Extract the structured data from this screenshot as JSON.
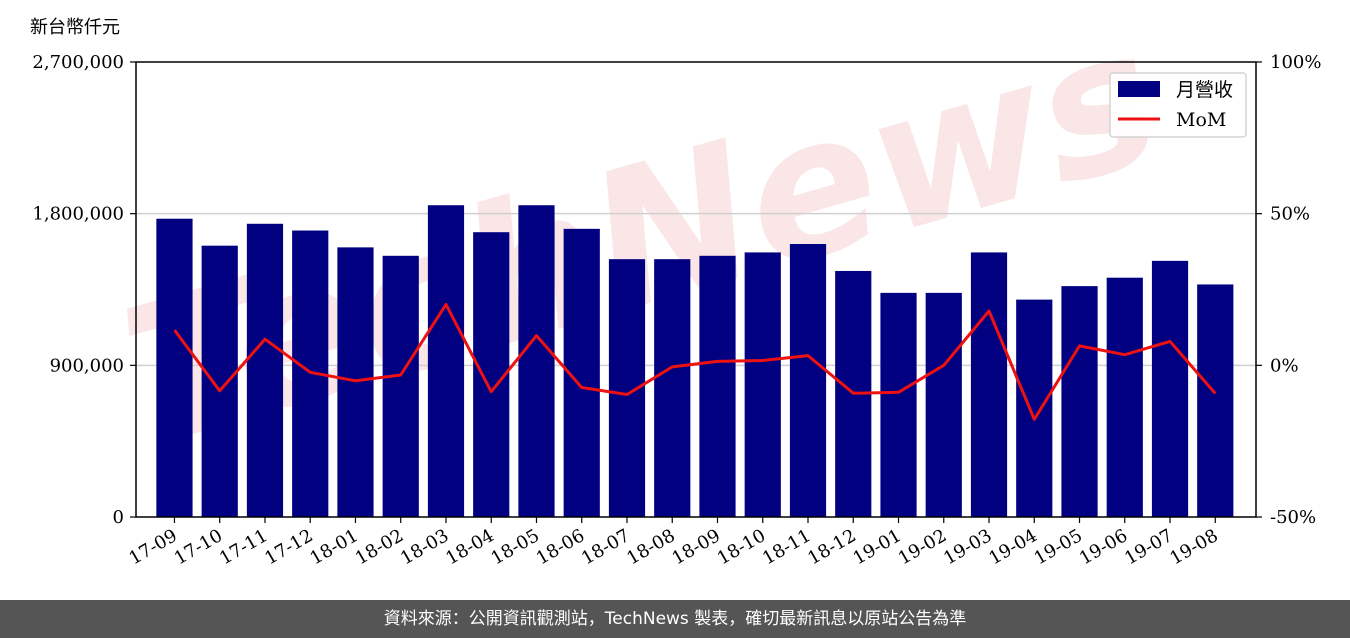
{
  "footer_text": "資料來源：公開資訊觀測站，TechNews 製表，確切最新訊息以原站公告為準",
  "watermark_text": "TechNews",
  "chart_data": {
    "type": "bar+line",
    "unit_label": "新台幣仟元",
    "categories": [
      "17-09",
      "17-10",
      "17-11",
      "17-12",
      "18-01",
      "18-02",
      "18-03",
      "18-04",
      "18-05",
      "18-06",
      "18-07",
      "18-08",
      "18-09",
      "18-10",
      "18-11",
      "18-12",
      "19-01",
      "19-02",
      "19-03",
      "19-04",
      "19-05",
      "19-06",
      "19-07",
      "19-08"
    ],
    "series": [
      {
        "name": "月營收",
        "type": "bar",
        "axis": "left",
        "color": "#000080",
        "values": [
          1770000,
          1610000,
          1740000,
          1700000,
          1600000,
          1550000,
          1850000,
          1690000,
          1850000,
          1710000,
          1530000,
          1530000,
          1550000,
          1570000,
          1620000,
          1460000,
          1330000,
          1330000,
          1570000,
          1290000,
          1370000,
          1420000,
          1520000,
          1380000
        ]
      },
      {
        "name": "MoM",
        "type": "line",
        "axis": "right",
        "color": "#ee1111",
        "values": [
          11.6,
          -8.4,
          8.6,
          -2.3,
          -5.1,
          -3.2,
          20.1,
          -8.7,
          9.8,
          -7.3,
          -9.6,
          -0.5,
          1.3,
          1.6,
          3.2,
          -9.2,
          -8.9,
          0,
          17.9,
          -17.8,
          6.4,
          3.5,
          7.9,
          -9.3
        ]
      }
    ],
    "y_left": {
      "min": 0,
      "max": 2700000,
      "ticks": [
        "0",
        "900,000",
        "1,800,000",
        "2,700,000"
      ],
      "tick_values": [
        0,
        900000,
        1800000,
        2700000
      ]
    },
    "y_right": {
      "min": -50,
      "max": 100,
      "ticks": [
        "-50%",
        "0%",
        "50%",
        "100%"
      ],
      "tick_values": [
        -50,
        0,
        50,
        100
      ]
    },
    "grid": "horizontal",
    "legend_position": "top-right"
  }
}
